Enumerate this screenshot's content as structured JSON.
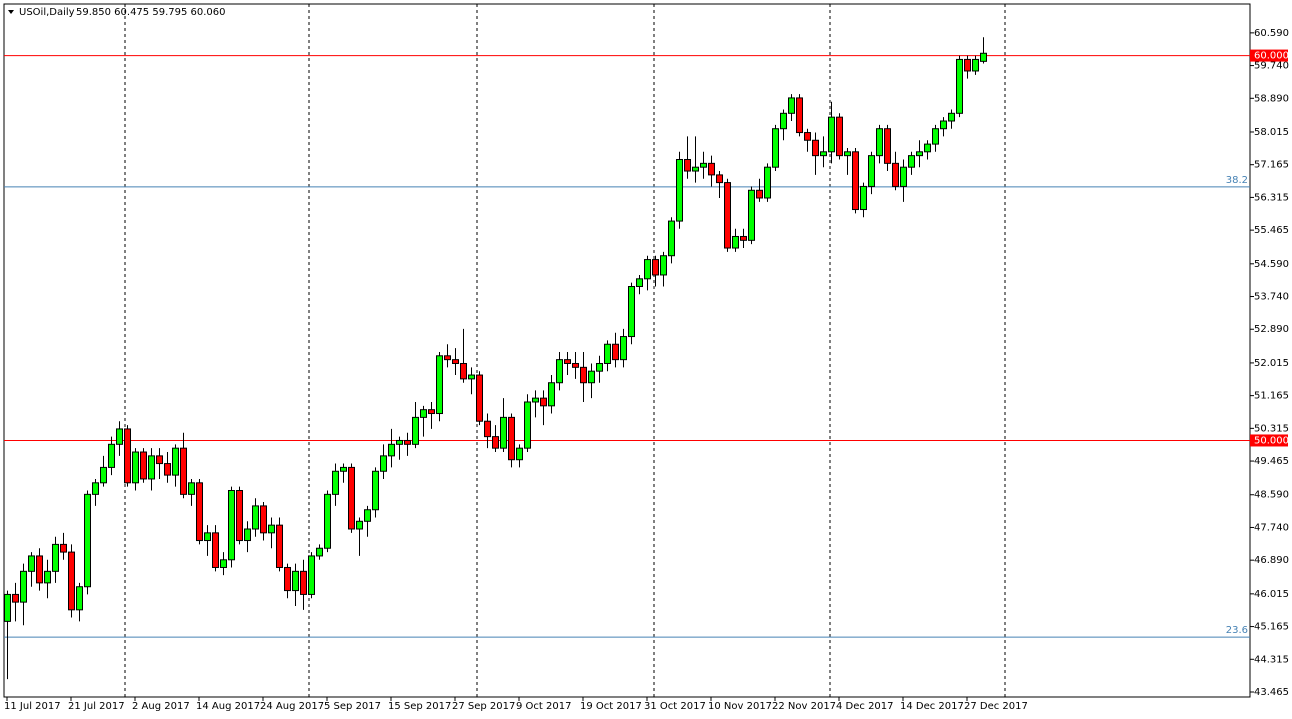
{
  "chart_data": {
    "type": "candlestick",
    "title": "USOil,Daily",
    "subtitle": "59.850 60.475 59.795 60.060",
    "up_color": "#00ff00",
    "down_color": "#ff0000",
    "categories": [
      "11 Jul 2017",
      null,
      null,
      null,
      null,
      null,
      null,
      null,
      "21 Jul 2017",
      null,
      null,
      null,
      null,
      null,
      null,
      null,
      "2 Aug 2017",
      null,
      null,
      null,
      null,
      null,
      null,
      null,
      "14 Aug 2017",
      null,
      null,
      null,
      null,
      null,
      null,
      null,
      "24 Aug 2017",
      null,
      null,
      null,
      null,
      null,
      null,
      null,
      "5 Sep 2017",
      null,
      null,
      null,
      null,
      null,
      null,
      null,
      "15 Sep 2017",
      null,
      null,
      null,
      null,
      null,
      null,
      null,
      "27 Sep 2017",
      null,
      null,
      null,
      null,
      null,
      null,
      null,
      "9 Oct 2017",
      null,
      null,
      null,
      null,
      null,
      null,
      null,
      "19 Oct 2017",
      null,
      null,
      null,
      null,
      null,
      null,
      null,
      "31 Oct 2017",
      null,
      null,
      null,
      null,
      null,
      null,
      null,
      "10 Nov 2017",
      null,
      null,
      null,
      null,
      null,
      null,
      null,
      "22 Nov 2017",
      null,
      null,
      null,
      null,
      null,
      null,
      null,
      "4 Dec 2017",
      null,
      null,
      null,
      null,
      null,
      null,
      null,
      "14 Dec 2017",
      null,
      null,
      null,
      null,
      null,
      null,
      null,
      "27 Dec 2017",
      null,
      null
    ],
    "open": [
      45.3,
      46.0,
      45.8,
      46.6,
      47.0,
      46.3,
      46.6,
      47.3,
      47.1,
      45.6,
      46.2,
      48.6,
      48.9,
      49.3,
      49.9,
      50.3,
      48.9,
      49.7,
      49.0,
      49.6,
      49.4,
      49.1,
      49.8,
      48.6,
      48.9,
      47.4,
      47.6,
      46.7,
      46.9,
      48.7,
      47.4,
      47.7,
      48.3,
      47.6,
      47.8,
      46.7,
      46.1,
      46.6,
      46.0,
      47.0,
      47.2,
      48.6,
      49.2,
      49.3,
      47.7,
      47.9,
      48.2,
      49.2,
      49.6,
      49.9,
      50.0,
      49.9,
      50.6,
      50.8,
      50.7,
      52.2,
      52.1,
      52.0,
      51.6,
      51.7,
      50.5,
      50.1,
      49.8,
      50.6,
      49.5,
      49.8,
      51.0,
      51.1,
      50.9,
      51.5,
      52.1,
      52.0,
      51.9,
      51.5,
      51.8,
      52.0,
      52.5,
      52.1,
      52.7,
      54.0,
      54.2,
      54.7,
      54.3,
      54.8,
      55.7,
      57.3,
      57.0,
      57.1,
      57.2,
      56.9,
      56.7,
      55.0,
      55.3,
      55.2,
      56.5,
      56.3,
      57.1,
      58.1,
      58.5,
      58.9,
      58.0,
      57.8,
      57.4,
      57.5,
      58.4,
      57.4,
      57.5,
      56.0,
      56.6,
      57.4,
      58.1,
      57.2,
      56.6,
      57.1,
      57.4,
      57.5,
      57.7,
      58.1,
      58.3,
      58.5,
      59.9,
      59.6,
      59.85
    ],
    "high": [
      46.1,
      46.3,
      46.8,
      47.1,
      47.2,
      46.9,
      47.5,
      47.6,
      47.3,
      46.3,
      48.7,
      49.0,
      49.6,
      50.1,
      50.5,
      50.4,
      49.8,
      49.8,
      49.8,
      49.8,
      49.7,
      49.9,
      50.2,
      49.0,
      49.0,
      47.8,
      47.8,
      47.1,
      48.8,
      48.8,
      47.9,
      48.5,
      48.4,
      48.0,
      48.0,
      46.8,
      46.8,
      46.9,
      47.1,
      47.3,
      48.7,
      49.4,
      49.4,
      49.4,
      48.0,
      48.3,
      49.3,
      49.9,
      50.3,
      50.1,
      50.2,
      51.0,
      50.9,
      51.0,
      52.3,
      52.5,
      52.4,
      52.9,
      51.9,
      51.8,
      50.7,
      50.4,
      51.1,
      50.7,
      49.9,
      51.2,
      51.3,
      51.3,
      51.7,
      52.3,
      52.3,
      52.3,
      52.3,
      52.0,
      52.2,
      52.6,
      52.8,
      52.9,
      54.1,
      54.3,
      54.8,
      54.8,
      54.9,
      55.8,
      57.5,
      57.9,
      57.9,
      57.5,
      57.4,
      57.0,
      56.8,
      55.5,
      55.5,
      56.6,
      56.8,
      57.2,
      58.2,
      58.6,
      59.0,
      59.0,
      58.1,
      58.0,
      57.9,
      58.8,
      58.5,
      57.6,
      57.6,
      56.7,
      57.5,
      58.2,
      58.2,
      57.5,
      57.3,
      57.5,
      57.8,
      57.8,
      58.2,
      58.4,
      58.6,
      60.0,
      60.0,
      60.0,
      60.475
    ],
    "low": [
      43.8,
      45.3,
      45.2,
      46.2,
      46.1,
      45.9,
      46.3,
      46.9,
      45.4,
      45.3,
      46.0,
      48.3,
      48.8,
      49.1,
      49.6,
      48.8,
      48.7,
      48.9,
      48.7,
      49.0,
      48.9,
      48.8,
      48.5,
      48.3,
      47.3,
      47.0,
      46.6,
      46.5,
      46.7,
      47.3,
      47.1,
      47.5,
      47.4,
      47.2,
      46.6,
      45.9,
      45.7,
      45.6,
      45.9,
      46.9,
      47.1,
      48.3,
      48.9,
      47.6,
      47.0,
      47.5,
      48.0,
      49.0,
      49.3,
      49.5,
      49.6,
      49.8,
      50.1,
      50.3,
      50.5,
      51.9,
      51.7,
      51.5,
      51.2,
      50.4,
      49.8,
      49.7,
      49.7,
      49.3,
      49.3,
      49.7,
      50.6,
      50.4,
      50.7,
      51.3,
      51.7,
      51.6,
      51.0,
      51.1,
      51.5,
      51.8,
      51.9,
      51.9,
      52.5,
      53.8,
      53.9,
      54.0,
      54.0,
      54.6,
      55.5,
      56.8,
      56.7,
      56.8,
      56.6,
      56.3,
      54.9,
      54.9,
      55.0,
      55.1,
      56.2,
      56.2,
      57.0,
      57.8,
      58.3,
      57.9,
      57.5,
      56.9,
      57.1,
      57.2,
      57.3,
      56.9,
      55.9,
      55.8,
      56.4,
      57.2,
      57.0,
      56.5,
      56.2,
      56.9,
      57.1,
      57.3,
      57.5,
      57.9,
      58.1,
      58.4,
      59.4,
      59.5,
      59.795
    ],
    "close": [
      46.0,
      45.8,
      46.6,
      47.0,
      46.3,
      46.6,
      47.3,
      47.1,
      45.6,
      46.2,
      48.6,
      48.9,
      49.3,
      49.9,
      50.3,
      48.9,
      49.7,
      49.0,
      49.6,
      49.4,
      49.1,
      49.8,
      48.6,
      48.9,
      47.4,
      47.6,
      46.7,
      46.9,
      48.7,
      47.4,
      47.7,
      48.3,
      47.6,
      47.8,
      46.7,
      46.1,
      46.6,
      46.0,
      47.0,
      47.2,
      48.6,
      49.2,
      49.3,
      47.7,
      47.9,
      48.2,
      49.2,
      49.6,
      49.9,
      50.0,
      49.9,
      50.6,
      50.8,
      50.7,
      52.2,
      52.1,
      52.0,
      51.6,
      51.7,
      50.5,
      50.1,
      49.8,
      50.6,
      49.5,
      49.8,
      51.0,
      51.1,
      50.9,
      51.5,
      52.1,
      52.0,
      51.9,
      51.5,
      51.8,
      52.0,
      52.5,
      52.1,
      52.7,
      54.0,
      54.2,
      54.7,
      54.3,
      54.8,
      55.7,
      57.3,
      57.0,
      57.1,
      57.2,
      56.9,
      56.7,
      55.0,
      55.3,
      55.2,
      56.5,
      56.3,
      57.1,
      58.1,
      58.5,
      58.9,
      58.0,
      57.8,
      57.4,
      57.5,
      58.4,
      57.4,
      57.5,
      56.0,
      56.6,
      57.4,
      58.1,
      57.2,
      56.6,
      57.1,
      57.4,
      57.5,
      57.7,
      58.1,
      58.3,
      58.5,
      59.9,
      59.6,
      59.9,
      60.06
    ],
    "ylim": [
      43.335,
      61.34
    ],
    "yticks": [
      {
        "value": 60.59,
        "label": "60.590"
      },
      {
        "value": 59.74,
        "label": "59.740"
      },
      {
        "value": 58.89,
        "label": "58.890"
      },
      58.015,
      57.165,
      56.315,
      55.465,
      {
        "value": 54.59,
        "label": "54.590"
      },
      {
        "value": 53.74,
        "label": "53.740"
      },
      {
        "value": 52.89,
        "label": "52.890"
      },
      52.015,
      51.165,
      50.315,
      49.465,
      {
        "value": 48.59,
        "label": "48.590"
      },
      {
        "value": 47.74,
        "label": "47.740"
      },
      {
        "value": 46.89,
        "label": "46.890"
      },
      46.015,
      45.165,
      44.315,
      43.465
    ],
    "levels": [
      {
        "value": 60,
        "label": "60.000",
        "color": "#ff0000"
      },
      {
        "value": 50,
        "label": "50.000",
        "color": "#ff0000"
      }
    ],
    "fib_levels": [
      {
        "value": 56.59,
        "label": "38.2",
        "color": "#4682b4"
      },
      {
        "value": 44.89,
        "label": "23.6",
        "color": "#4682b4"
      }
    ]
  }
}
